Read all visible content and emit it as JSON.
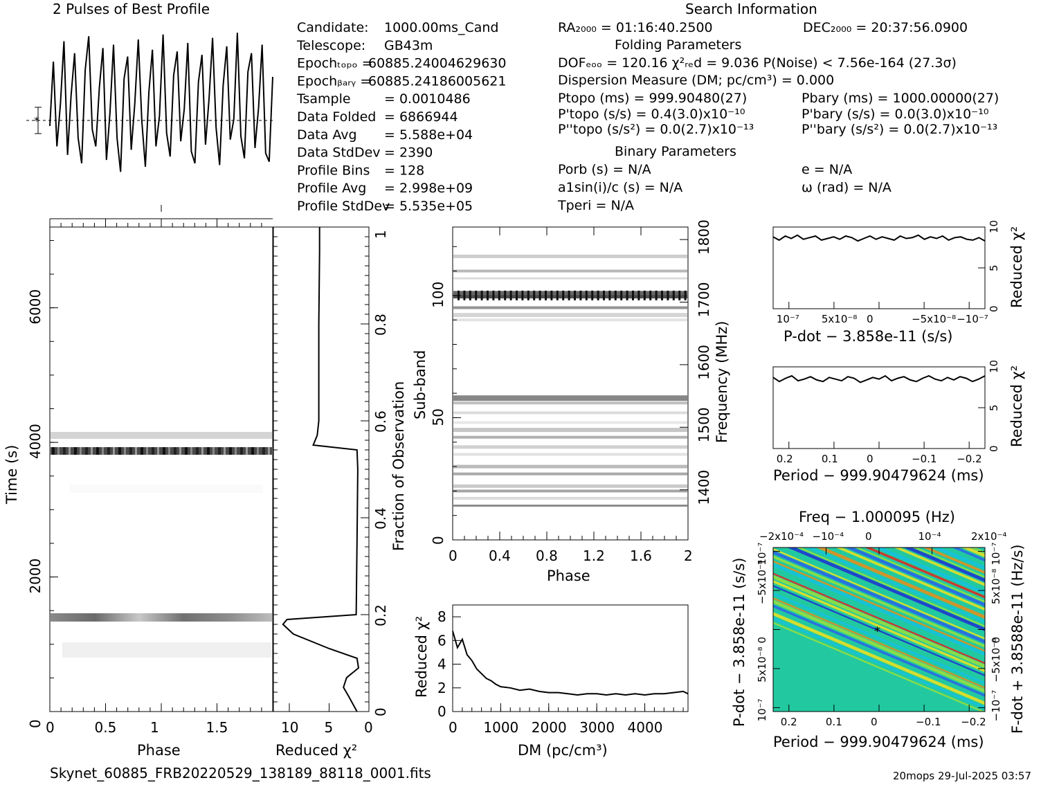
{
  "profile": {
    "title": "2 Pulses of Best Profile"
  },
  "search_info": {
    "title": "Search Information",
    "ra": "RA₂₀₀₀ = 01:16:40.2500",
    "dec": "DEC₂₀₀₀ = 20:37:56.0900",
    "folding_title": "Folding Parameters",
    "dof_line": "DOFₑₒₒ = 120.16   χ²ᵣₑd = 9.036   P(Noise) < 7.56e-164   (27.3σ)",
    "dm_line": "Dispersion Measure (DM; pc/cm³) = 0.000",
    "ptopo": "Ptopo (ms) =  999.90480(27)",
    "pbary": "Pbary (ms) =  1000.00000(27)",
    "pdtopo": "P'topo (s/s) =  0.4(3.0)x10⁻¹⁰",
    "pdbary": "P'bary (s/s) = 0.0(3.0)x10⁻¹⁰",
    "pddtopo": "P''topo (s/s²) = 0.0(2.7)x10⁻¹³",
    "pddbary": "P''bary (s/s²) = 0.0(2.7)x10⁻¹³",
    "binary_title": "Binary Parameters",
    "porb": "Porb (s) = N/A",
    "ecc": "e = N/A",
    "a1": "a1sin(i)/c (s) = N/A",
    "omega": "ω (rad) = N/A",
    "tperi": "Tperi = N/A"
  },
  "candidate": {
    "rows": [
      [
        "Candidate:",
        "1000.00ms_Cand"
      ],
      [
        "Telescope:",
        "GB43m"
      ],
      [
        "Epochₜₒₚₒ =",
        "60885.24004629630"
      ],
      [
        "Epochᵦₐᵣᵧ =",
        "60885.24186005621"
      ],
      [
        "Tsample",
        "=  0.0010486"
      ],
      [
        "Data Folded",
        "=  6866944"
      ],
      [
        "Data Avg",
        "=  5.588e+04"
      ],
      [
        "Data StdDev",
        "=  2390"
      ],
      [
        "Profile Bins",
        "=  128"
      ],
      [
        "Profile Avg",
        "=  2.998e+09"
      ],
      [
        "Profile StdDev",
        "=  5.535e+05"
      ]
    ]
  },
  "time_phase": {
    "xlabel": "Phase",
    "ylabel": "Time (s)",
    "xticks": [
      "0",
      "0.5",
      "1",
      "1.5"
    ],
    "yticks": [
      "0",
      "2000",
      "4000",
      "6000"
    ]
  },
  "chi_time": {
    "xlabel": "Reduced χ²",
    "xticks": [
      "10",
      "5",
      "0"
    ],
    "right_label": "Fraction of Observation",
    "right_ticks": [
      "0",
      "0.2",
      "0.4",
      "0.6",
      "0.8",
      "1"
    ]
  },
  "subband": {
    "xlabel": "Phase",
    "ylabel": "Sub-band",
    "right_label": "Frequency (MHz)",
    "xticks": [
      "0",
      "0.4",
      "0.8",
      "1.2",
      "1.6",
      "2"
    ],
    "yticks": [
      "0",
      "50",
      "100"
    ],
    "right_ticks": [
      "1400",
      "1500",
      "1600",
      "1700",
      "1800"
    ]
  },
  "dm_plot": {
    "xlabel": "DM (pc/cm³)",
    "ylabel": "Reduced χ²",
    "xticks": [
      "0",
      "1000",
      "2000",
      "3000",
      "4000"
    ],
    "yticks": [
      "0",
      "2",
      "4",
      "6",
      "8"
    ]
  },
  "pdot_plot": {
    "xlabel": "P-dot − 3.858e-11 (s/s)",
    "ylabel": "Reduced χ²",
    "xticks": [
      "10⁻⁷",
      "5x10⁻⁸",
      "0",
      "−5x10⁻⁸",
      "−10⁻⁷"
    ],
    "yticks": [
      "0",
      "5",
      "10"
    ]
  },
  "period_plot": {
    "xlabel": "Period − 999.90479624 (ms)",
    "ylabel": "Reduced χ²",
    "xticks": [
      "0.2",
      "0.1",
      "0",
      "−0.1",
      "−0.2"
    ],
    "yticks": [
      "0",
      "5",
      "10"
    ]
  },
  "ppdot_plot": {
    "top_label": "Freq − 1.000095 (Hz)",
    "top_ticks": [
      "−2x10⁻⁴",
      "−10⁻⁴",
      "0",
      "10⁻⁴",
      "2x10⁻⁴"
    ],
    "xlabel": "Period − 999.90479624 (ms)",
    "xticks": [
      "0.2",
      "0.1",
      "0",
      "−0.1",
      "−0.2"
    ],
    "left_label": "P-dot − 3.858e-11 (s/s)",
    "left_ticks": [
      "10⁻⁷",
      "5x10⁻⁸",
      "0",
      "−5x10⁻⁸",
      "10⁻⁷"
    ],
    "right_label": "F-dot + 3.8588e-11 (Hz/s)",
    "right_ticks": [
      "−10⁻⁷",
      "−5x10⁻⁸",
      "0",
      "5x10⁻⁸",
      "10⁻⁷"
    ]
  },
  "footer": {
    "filename": "Skynet_60885_FRB20220529_138189_88118_0001.fits",
    "stamp": "20mops 29-Jul-2025 03:57"
  },
  "chart_data": [
    {
      "type": "line",
      "title": "2 Pulses of Best Profile",
      "xlabel": "",
      "ylabel": "",
      "x_range": [
        0,
        2
      ],
      "bins_per_period": 128,
      "values": [
        0.42,
        0.8,
        0.3,
        0.55,
        0.92,
        0.25,
        0.6,
        0.85,
        0.35,
        0.2,
        0.75,
        0.95,
        0.4,
        0.3,
        0.65,
        0.88,
        0.22,
        0.5,
        0.9,
        0.35,
        0.15,
        0.7,
        0.83,
        0.28,
        0.55,
        0.93,
        0.45,
        0.18,
        0.62,
        0.87,
        0.3,
        0.48,
        0.96,
        0.38,
        0.24,
        0.72,
        0.86,
        0.33,
        0.52,
        0.91,
        0.27,
        0.2,
        0.68,
        0.84,
        0.31,
        0.58,
        0.94,
        0.41,
        0.19,
        0.66,
        0.89,
        0.34,
        0.46,
        0.97,
        0.36,
        0.23,
        0.74,
        0.85,
        0.29,
        0.53,
        0.9,
        0.26,
        0.21,
        0.71
      ]
    },
    {
      "type": "line",
      "title": "",
      "xlabel": "Reduced χ²",
      "ylabel": "Fraction of Observation",
      "x_range": [
        12,
        0
      ],
      "y_range": [
        0,
        1
      ],
      "points": [
        [
          1.5,
          0.0
        ],
        [
          2.5,
          0.03
        ],
        [
          3.2,
          0.05
        ],
        [
          2.8,
          0.07
        ],
        [
          1.3,
          0.09
        ],
        [
          1.5,
          0.11
        ],
        [
          5.0,
          0.13
        ],
        [
          9.5,
          0.16
        ],
        [
          10.8,
          0.18
        ],
        [
          10.3,
          0.19
        ],
        [
          1.6,
          0.2
        ],
        [
          1.5,
          0.35
        ],
        [
          1.4,
          0.5
        ],
        [
          1.5,
          0.54
        ],
        [
          7.0,
          0.55
        ],
        [
          6.5,
          0.57
        ],
        [
          6.3,
          0.6
        ],
        [
          6.3,
          0.8
        ],
        [
          6.2,
          0.95
        ],
        [
          6.2,
          1.0
        ]
      ]
    },
    {
      "type": "line",
      "title": "",
      "xlabel": "DM (pc/cm³)",
      "ylabel": "Reduced χ²",
      "x_range": [
        0,
        4900
      ],
      "y_range": [
        0,
        9
      ],
      "x": [
        0,
        100,
        200,
        300,
        400,
        500,
        600,
        700,
        800,
        900,
        1000,
        1200,
        1400,
        1600,
        1800,
        2000,
        2200,
        2400,
        2600,
        2800,
        3000,
        3200,
        3400,
        3600,
        3800,
        4000,
        4200,
        4400,
        4600,
        4800,
        4900
      ],
      "y": [
        6.8,
        5.4,
        6.1,
        4.8,
        4.3,
        3.6,
        3.2,
        2.8,
        2.6,
        2.3,
        2.1,
        2.0,
        1.8,
        1.9,
        1.7,
        1.6,
        1.6,
        1.5,
        1.4,
        1.5,
        1.5,
        1.4,
        1.5,
        1.4,
        1.5,
        1.4,
        1.5,
        1.5,
        1.6,
        1.7,
        1.5
      ]
    },
    {
      "type": "line",
      "title": "",
      "xlabel": "P-dot − 3.858e-11 (s/s)",
      "ylabel": "Reduced χ²",
      "y_range": [
        0,
        10
      ],
      "values": [
        8.8,
        8.4,
        8.9,
        8.6,
        9.0,
        8.5,
        8.7,
        8.9,
        8.4,
        8.6,
        8.8,
        8.5,
        8.9,
        8.7,
        8.3,
        8.6,
        8.9,
        8.5,
        8.8,
        8.6,
        8.4,
        8.9,
        8.6,
        8.7,
        9.0,
        8.5,
        8.8,
        8.6,
        8.9,
        8.4,
        8.7,
        8.8,
        8.5,
        8.4,
        8.7,
        8.3
      ]
    },
    {
      "type": "line",
      "title": "",
      "xlabel": "Period − 999.90479624 (ms)",
      "ylabel": "Reduced χ²",
      "y_range": [
        0,
        10
      ],
      "values": [
        8.7,
        8.2,
        8.6,
        8.9,
        8.3,
        8.5,
        8.8,
        8.4,
        8.2,
        8.7,
        8.5,
        8.3,
        8.8,
        8.6,
        8.1,
        8.4,
        8.7,
        8.5,
        8.9,
        8.3,
        8.6,
        8.8,
        8.4,
        8.2,
        8.6,
        8.9,
        8.5,
        8.3,
        8.7,
        8.4,
        8.8,
        8.6,
        8.2,
        8.5,
        8.9
      ]
    },
    {
      "type": "heatmap",
      "title": "",
      "xlabel": "Period − 999.90479624 (ms)",
      "ylabel": "P-dot − 3.858e-11 (s/s)",
      "x_range": [
        0.2,
        -0.2
      ],
      "colors": [
        "#1e2fd0",
        "#2a62e8",
        "#15bfe0",
        "#22c9a0",
        "#9be03a",
        "#f2e21c",
        "#f08a18",
        "#e8231c"
      ]
    }
  ]
}
